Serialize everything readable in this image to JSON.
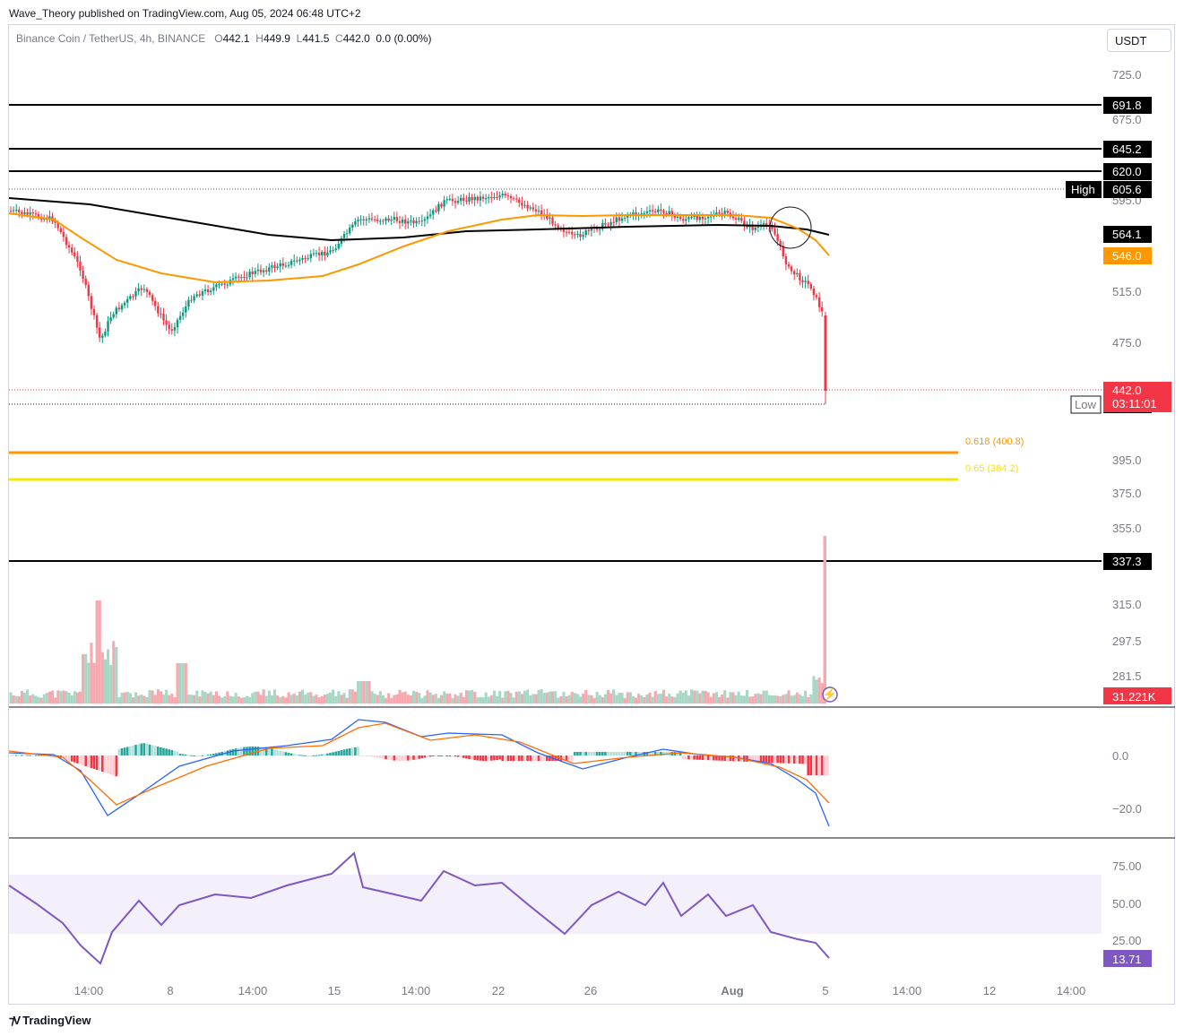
{
  "header": {
    "publisher": "Wave_Theory published on TradingView.com, Aug 05, 2024 06:48 UTC+2"
  },
  "legend": {
    "symbol": "Binance Coin / TetherUS, 4h, BINANCE",
    "o_label": "O",
    "o_value": "442.1",
    "h_label": "H",
    "h_value": "449.9",
    "l_label": "L",
    "l_value": "441.5",
    "c_label": "C",
    "c_value": "442.0",
    "change": "0.0 (0.00%)"
  },
  "currency_button": "USDT",
  "footer": {
    "brand": "TradingView"
  },
  "colors": {
    "up": "#089981",
    "down": "#f23645",
    "ema_fast": "#ff9800",
    "ema_slow": "#000000",
    "fib_618": "#ff9800",
    "fib_65": "#f7e600",
    "macd": "#2962ff",
    "signal": "#ff6d00",
    "rsi": "#7e57c2",
    "rsi_band": "#f3effb"
  },
  "chart_data": {
    "type": "candlestick",
    "symbol": "BNB/USDT",
    "timeframe": "4h",
    "price_axis": {
      "ticks": [
        "725.0",
        "675.0",
        "595.0",
        "515.0",
        "475.0",
        "395.0",
        "375.0",
        "355.0",
        "315.0",
        "297.5",
        "281.5"
      ]
    },
    "time_axis": {
      "ticks": [
        "14:00",
        "8",
        "14:00",
        "15",
        "14:00",
        "22",
        "26",
        "Aug",
        "5",
        "14:00",
        "12",
        "14:00"
      ]
    },
    "price_series": {
      "x": [
        "Aug 5"
      ],
      "values": [
        442.0
      ]
    },
    "horizontal_levels": [
      {
        "value": 691.8,
        "label": "691.8"
      },
      {
        "value": 645.2,
        "label": "645.2"
      },
      {
        "value": 620.0,
        "label": "620.0"
      },
      {
        "value": 337.3,
        "label": "337.3"
      }
    ],
    "high": {
      "label": "High",
      "value": "605.6"
    },
    "low": {
      "label": "Low",
      "value": "432.0"
    },
    "last_price": {
      "value": "442.0",
      "countdown": "03:11:01"
    },
    "ema_fast": {
      "label": "546.0"
    },
    "ema_slow": {
      "label": "564.1"
    },
    "fibonacci": [
      {
        "text": "0.618 (400.8)",
        "value": 400.8
      },
      {
        "text": "0.65 (384.2)",
        "value": 384.2
      }
    ],
    "volume": {
      "last_label": "31.221K"
    },
    "macd": {
      "ticks": [
        "0.0",
        "−20.0"
      ]
    },
    "rsi": {
      "ticks": [
        "75.00",
        "50.00",
        "25.00"
      ],
      "last": "13.71"
    }
  }
}
